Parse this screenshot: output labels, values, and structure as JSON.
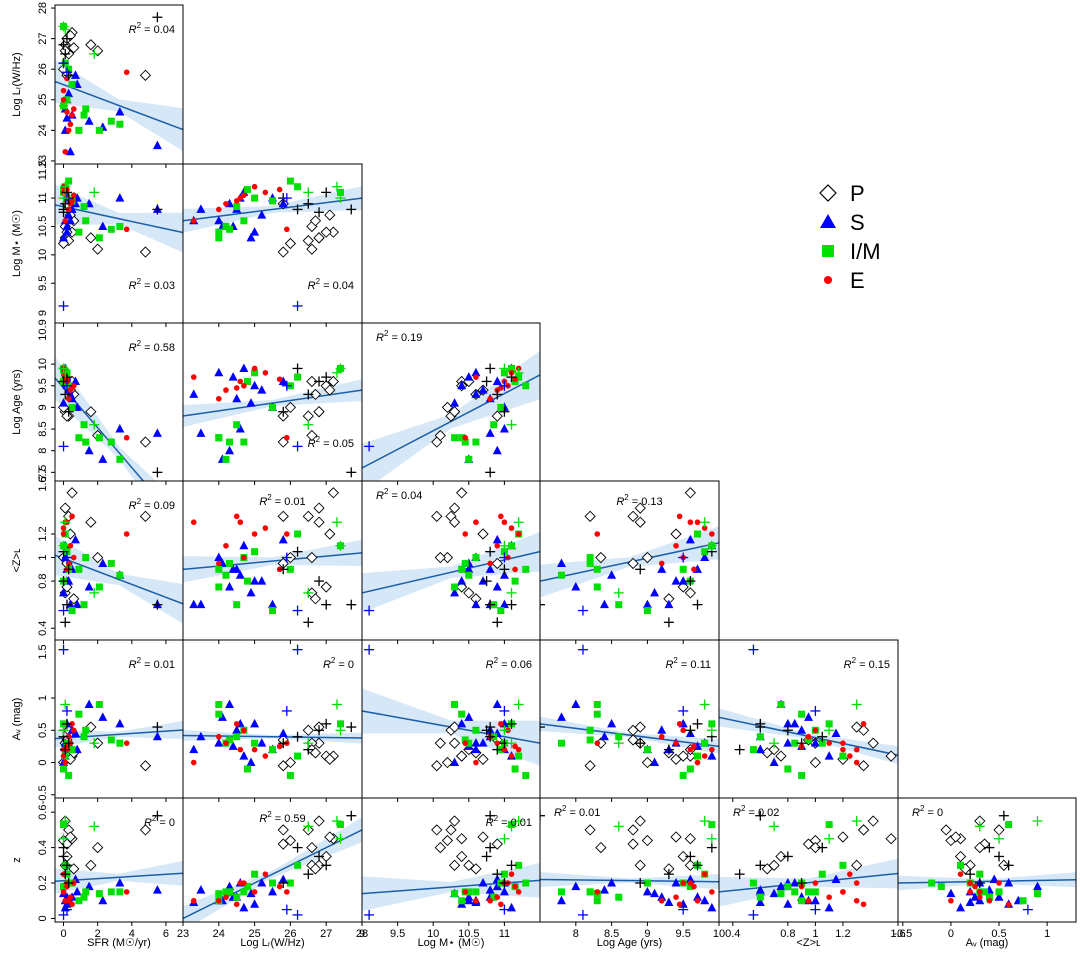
{
  "chart_data": {
    "type": "scatter",
    "variables": [
      {
        "key": "sfr",
        "label": "SFR (M☉/yr)",
        "ticks": [
          0,
          2,
          4,
          6
        ],
        "range": [
          -0.5,
          7.0
        ]
      },
      {
        "key": "lr",
        "label": "Log Lᵣ(W/Hz)",
        "ticks": [
          23,
          24,
          25,
          26,
          27,
          28
        ],
        "range": [
          23,
          28
        ]
      },
      {
        "key": "mstar",
        "label": "Log M⋆ (M☉)",
        "ticks": [
          9,
          9.5,
          10,
          10.5,
          11
        ],
        "range": [
          9,
          11.5
        ]
      },
      {
        "key": "age",
        "label": "Log Age (yrs)",
        "ticks": [
          8,
          8.5,
          9,
          9.5,
          10
        ],
        "range": [
          7.5,
          10
        ]
      },
      {
        "key": "z_l",
        "label": "<Z>ʟ",
        "ticks": [
          0.4,
          0.8,
          1,
          1.2,
          1.6
        ],
        "range": [
          0.3,
          1.6
        ]
      },
      {
        "key": "av",
        "label": "Aᵥ (mag)",
        "ticks": [
          -0.5,
          0,
          0.5,
          1
        ],
        "range": [
          -0.55,
          1.3
        ]
      },
      {
        "key": "z",
        "label": "z",
        "ticks": [
          0,
          0.2,
          0.4,
          0.6
        ],
        "range": [
          -0.02,
          0.68
        ]
      }
    ],
    "y_ticks": {
      "lr": [
        23,
        24,
        25,
        26,
        27,
        28
      ],
      "mstar": [
        9.5,
        10,
        10.5,
        11
      ],
      "age": [
        7.5,
        8,
        8.5,
        9,
        9.5,
        10
      ],
      "z_l": [
        0.4,
        0.8,
        1,
        1.2
      ],
      "av": [
        -0.5,
        0,
        0.5,
        1
      ],
      "z": [
        0,
        0.2,
        0.4,
        0.6
      ]
    },
    "y_tick_labels": {
      "lr": [
        "23",
        "24",
        "25",
        "26",
        "27",
        "28"
      ],
      "mstar": [
        "9.5",
        "10",
        "10.5",
        "11"
      ],
      "age": [
        "7.5",
        "8",
        "8.5",
        "9",
        "9.5",
        "10"
      ],
      "z_l": [
        "0.4",
        "0.8",
        "1",
        "1.2"
      ],
      "av": [
        "-0.5",
        "0",
        "0.5",
        "1"
      ],
      "z": [
        "0",
        "0.2",
        "0.4",
        "0.6"
      ]
    },
    "y_extra_labels": {
      "mstar": [
        "9",
        "11.5"
      ],
      "age": [
        "6.7",
        "10.9"
      ],
      "z_l": [
        "1.6"
      ],
      "av": [
        "1.5"
      ]
    },
    "y_range": {
      "lr": [
        22.9,
        28.1
      ],
      "mstar": [
        8.8,
        11.6
      ],
      "age": [
        7.3,
        10.95
      ],
      "z_l": [
        0.3,
        1.65
      ],
      "av": [
        -0.55,
        1.9
      ],
      "z": [
        -0.02,
        0.68
      ]
    },
    "panels": [
      {
        "x": "sfr",
        "y": "lr",
        "r2": "0.04",
        "r2_pos": "top-right",
        "fit": [
          25.6,
          -0.21
        ],
        "band": 0.5
      },
      {
        "x": "sfr",
        "y": "mstar",
        "r2": "0.03",
        "r2_pos": "bottom-right",
        "fit": [
          10.88,
          -0.065
        ],
        "band": 0.25
      },
      {
        "x": "lr",
        "y": "mstar",
        "r2": "0.04",
        "r2_pos": "bottom-right",
        "fit": [
          10.6,
          0.08
        ],
        "band": 0.15
      },
      {
        "x": "sfr",
        "y": "age",
        "r2": "0.58",
        "r2_pos": "top-right",
        "fit": [
          9.68,
          -0.46
        ],
        "band": 0.35
      },
      {
        "x": "lr",
        "y": "age",
        "r2": "0.05",
        "r2_pos": "bottom-right",
        "fit": [
          8.8,
          0.12
        ],
        "band": 0.18
      },
      {
        "x": "mstar",
        "y": "age",
        "r2": "0.19",
        "r2_pos": "top-left",
        "fit": [
          7.6,
          0.86
        ],
        "band": 0.4
      },
      {
        "x": "sfr",
        "y": "z_l",
        "r2": "0.09",
        "r2_pos": "top-right",
        "fit": [
          1.02,
          -0.055
        ],
        "band": 0.12
      },
      {
        "x": "lr",
        "y": "z_l",
        "r2": "0.01",
        "r2_pos": "top-center",
        "fit": [
          0.9,
          0.028
        ],
        "band": 0.08
      },
      {
        "x": "mstar",
        "y": "z_l",
        "r2": "0.04",
        "r2_pos": "top-left",
        "fit": [
          0.7,
          0.14
        ],
        "band": 0.12
      },
      {
        "x": "age",
        "y": "z_l",
        "r2": "0.13",
        "r2_pos": "top-center",
        "fit": [
          0.8,
          0.13
        ],
        "band": 0.1
      },
      {
        "x": "sfr",
        "y": "av",
        "r2": "0.01",
        "r2_pos": "top-right",
        "fit": [
          0.37,
          0.018
        ],
        "band": 0.1
      },
      {
        "x": "lr",
        "y": "av",
        "r2": "0",
        "r2_pos": "top-right",
        "fit": [
          0.42,
          -0.008
        ],
        "band": 0.06
      },
      {
        "x": "mstar",
        "y": "av",
        "r2": "0.06",
        "r2_pos": "top-right",
        "fit": [
          0.8,
          -0.2
        ],
        "band": 0.25
      },
      {
        "x": "age",
        "y": "av",
        "r2": "0.11",
        "r2_pos": "top-right",
        "fit": [
          0.6,
          -0.14
        ],
        "band": 0.08
      },
      {
        "x": "z_l",
        "y": "av",
        "r2": "0.15",
        "r2_pos": "top-right",
        "fit": [
          0.7,
          -0.45
        ],
        "band": 0.1
      },
      {
        "x": "sfr",
        "y": "z",
        "r2": "0",
        "r2_pos": "top-right",
        "fit": [
          0.21,
          0.006
        ],
        "band": 0.05
      },
      {
        "x": "lr",
        "y": "z",
        "r2": "0.59",
        "r2_pos": "top-center",
        "fit": [
          0.0,
          0.1
        ],
        "band": 0.05
      },
      {
        "x": "mstar",
        "y": "z",
        "r2": "0.01",
        "r2_pos": "top-right",
        "fit": [
          0.14,
          0.03
        ],
        "band": 0.07
      },
      {
        "x": "age",
        "y": "z",
        "r2": "0.01",
        "r2_pos": "top-left",
        "fit": [
          0.22,
          -0.005
        ],
        "band": 0.03
      },
      {
        "x": "z_l",
        "y": "z",
        "r2": "0.02",
        "r2_pos": "top-left",
        "fit": [
          0.15,
          0.08
        ],
        "band": 0.06
      },
      {
        "x": "av",
        "y": "z",
        "r2": "0",
        "r2_pos": "top-left",
        "fit": [
          0.2,
          0.01
        ],
        "band": 0.03
      }
    ],
    "points": [
      {
        "g": "P",
        "sfr": 0.1,
        "lr": 26.8,
        "mstar": 10.3,
        "age": 8.9,
        "z_l": 1.42,
        "av": 0.3,
        "z": 0.55
      },
      {
        "g": "P",
        "sfr": 0.3,
        "lr": 26.5,
        "mstar": 10.25,
        "age": 8.8,
        "z_l": 1.35,
        "av": 0.5,
        "z": 0.5
      },
      {
        "g": "P",
        "sfr": 0.5,
        "lr": 27.2,
        "mstar": 10.4,
        "age": 9.6,
        "z_l": 1.55,
        "av": 0.1,
        "z": 0.45
      },
      {
        "g": "P",
        "sfr": 1.6,
        "lr": 26.8,
        "mstar": 10.3,
        "age": 8.9,
        "z_l": 1.3,
        "av": 0.55,
        "z": 0.3
      },
      {
        "g": "P",
        "sfr": 0.0,
        "lr": 26.0,
        "mstar": 10.2,
        "age": 9.0,
        "z_l": 1.0,
        "av": 0.0,
        "z": 0.44
      },
      {
        "g": "P",
        "sfr": 0.2,
        "lr": 25.8,
        "mstar": 10.9,
        "age": 8.8,
        "z_l": 0.95,
        "av": 0.35,
        "z": 0.42
      },
      {
        "g": "P",
        "sfr": 2.0,
        "lr": 26.6,
        "mstar": 10.1,
        "age": 8.35,
        "z_l": 1.0,
        "av": 0.3,
        "z": 0.4
      },
      {
        "g": "P",
        "sfr": 4.8,
        "lr": 25.8,
        "mstar": 10.05,
        "age": 8.2,
        "z_l": 1.35,
        "av": -0.05,
        "z": 0.5
      },
      {
        "g": "P",
        "sfr": 0.1,
        "lr": 26.6,
        "mstar": 10.5,
        "age": 9.6,
        "z_l": 0.7,
        "av": 0.2,
        "z": 0.3
      },
      {
        "g": "P",
        "sfr": 0.2,
        "lr": 27.0,
        "mstar": 10.4,
        "age": 9.5,
        "z_l": 0.75,
        "av": 0.1,
        "z": 0.35
      },
      {
        "g": "P",
        "sfr": 0.6,
        "lr": 26.7,
        "mstar": 10.6,
        "age": 9.3,
        "z_l": 0.65,
        "av": 0.15,
        "z": 0.28
      },
      {
        "g": "P",
        "sfr": 0.4,
        "lr": 27.1,
        "mstar": 10.7,
        "age": 9.4,
        "z_l": 1.2,
        "av": 0.05,
        "z": 0.46
      },
      {
        "g": "S",
        "sfr": 0.1,
        "lr": 24.0,
        "mstar": 10.6,
        "age": 9.8,
        "z_l": 1.0,
        "av": 0.3,
        "z": 0.1
      },
      {
        "g": "S",
        "sfr": 0.5,
        "lr": 24.5,
        "mstar": 10.8,
        "age": 9.2,
        "z_l": 0.9,
        "av": 0.5,
        "z": 0.12
      },
      {
        "g": "S",
        "sfr": 0.8,
        "lr": 25.5,
        "mstar": 11.0,
        "age": 9.0,
        "z_l": 0.6,
        "av": 0.2,
        "z": 0.15
      },
      {
        "g": "S",
        "sfr": 0.2,
        "lr": 25.0,
        "mstar": 10.4,
        "age": 9.5,
        "z_l": 0.8,
        "av": 0.6,
        "z": 0.08
      },
      {
        "g": "S",
        "sfr": 1.5,
        "lr": 24.3,
        "mstar": 10.9,
        "age": 8.0,
        "z_l": 0.75,
        "av": 0.9,
        "z": 0.18
      },
      {
        "g": "S",
        "sfr": 2.3,
        "lr": 24.1,
        "mstar": 10.5,
        "age": 7.8,
        "z_l": 0.95,
        "av": 0.7,
        "z": 0.1
      },
      {
        "g": "S",
        "sfr": 5.5,
        "lr": 23.5,
        "mstar": 10.8,
        "age": 8.4,
        "z_l": 0.6,
        "av": 0.4,
        "z": 0.16
      },
      {
        "g": "S",
        "sfr": 0.1,
        "lr": 24.7,
        "mstar": 11.1,
        "age": 9.9,
        "z_l": 1.1,
        "av": 0.1,
        "z": 0.06
      },
      {
        "g": "S",
        "sfr": 0.3,
        "lr": 25.2,
        "mstar": 10.7,
        "age": 9.4,
        "z_l": 0.8,
        "av": 0.3,
        "z": 0.2
      },
      {
        "g": "S",
        "sfr": 0.0,
        "lr": 24.9,
        "mstar": 10.3,
        "age": 9.1,
        "z_l": 0.7,
        "av": 0.0,
        "z": 0.14
      },
      {
        "g": "S",
        "sfr": 0.7,
        "lr": 25.8,
        "mstar": 10.9,
        "age": 9.6,
        "z_l": 1.15,
        "av": 0.45,
        "z": 0.22
      },
      {
        "g": "S",
        "sfr": 0.2,
        "lr": 24.4,
        "mstar": 10.5,
        "age": 9.7,
        "z_l": 0.9,
        "av": 0.25,
        "z": 0.12
      },
      {
        "g": "S",
        "sfr": 3.3,
        "lr": 24.6,
        "mstar": 11.0,
        "age": 8.5,
        "z_l": 0.85,
        "av": 0.6,
        "z": 0.2
      },
      {
        "g": "S",
        "sfr": 0.4,
        "lr": 23.3,
        "mstar": 10.6,
        "age": 9.3,
        "z_l": 0.6,
        "av": 0.2,
        "z": 0.09
      },
      {
        "g": "I",
        "sfr": 0.0,
        "lr": 27.4,
        "mstar": 11.1,
        "age": 9.9,
        "z_l": 1.1,
        "av": 0.6,
        "z": 0.53
      },
      {
        "g": "I",
        "sfr": 0.3,
        "lr": 26.0,
        "mstar": 11.3,
        "age": 9.5,
        "z_l": 0.9,
        "av": -0.2,
        "z": 0.2
      },
      {
        "g": "I",
        "sfr": 1.3,
        "lr": 24.7,
        "mstar": 10.6,
        "age": 8.2,
        "z_l": 1.0,
        "av": 0.5,
        "z": 0.15
      },
      {
        "g": "I",
        "sfr": 2.1,
        "lr": 24.0,
        "mstar": 10.3,
        "age": 8.3,
        "z_l": 0.75,
        "av": 0.9,
        "z": 0.14
      },
      {
        "g": "I",
        "sfr": 3.3,
        "lr": 24.2,
        "mstar": 10.5,
        "age": 7.8,
        "z_l": 0.85,
        "av": 0.3,
        "z": 0.15
      },
      {
        "g": "I",
        "sfr": 0.5,
        "lr": 25.5,
        "mstar": 10.95,
        "age": 9.0,
        "z_l": 0.55,
        "av": 0.2,
        "z": 0.2
      },
      {
        "g": "I",
        "sfr": 0.1,
        "lr": 26.2,
        "mstar": 11.2,
        "age": 9.7,
        "z_l": 1.2,
        "av": 0.1,
        "z": 0.3
      },
      {
        "g": "I",
        "sfr": 1.2,
        "lr": 24.5,
        "mstar": 10.85,
        "age": 8.6,
        "z_l": 0.6,
        "av": 0.4,
        "z": 0.12
      },
      {
        "g": "I",
        "sfr": 0.9,
        "lr": 24.0,
        "mstar": 10.4,
        "age": 8.3,
        "z_l": 0.9,
        "av": 0.75,
        "z": 0.1
      },
      {
        "g": "I",
        "sfr": 0.2,
        "lr": 25.0,
        "mstar": 11.0,
        "age": 9.8,
        "z_l": 1.05,
        "av": 0.3,
        "z": 0.25
      },
      {
        "g": "I",
        "sfr": 2.8,
        "lr": 24.3,
        "mstar": 10.45,
        "age": 8.2,
        "z_l": 0.95,
        "av": 0.35,
        "z": 0.15
      },
      {
        "g": "I",
        "sfr": 0.0,
        "lr": 24.8,
        "mstar": 11.15,
        "age": 9.6,
        "z_l": 0.8,
        "av": -0.1,
        "z": 0.18
      },
      {
        "g": "E",
        "sfr": 0.2,
        "lr": 24.6,
        "mstar": 11.0,
        "age": 9.6,
        "z_l": 1.3,
        "av": 0.2,
        "z": 0.2
      },
      {
        "g": "E",
        "sfr": 0.0,
        "lr": 25.3,
        "mstar": 11.1,
        "age": 9.8,
        "z_l": 1.25,
        "av": 0.1,
        "z": 0.25
      },
      {
        "g": "E",
        "sfr": 0.4,
        "lr": 24.2,
        "mstar": 10.9,
        "age": 9.4,
        "z_l": 1.1,
        "av": 0.3,
        "z": 0.12
      },
      {
        "g": "E",
        "sfr": 3.7,
        "lr": 25.9,
        "mstar": 10.45,
        "age": 8.3,
        "z_l": 1.2,
        "av": 0.3,
        "z": 0.15
      },
      {
        "g": "E",
        "sfr": 0.1,
        "lr": 23.3,
        "mstar": 10.6,
        "age": 9.7,
        "z_l": 1.3,
        "av": 0.0,
        "z": 0.1
      },
      {
        "g": "E",
        "sfr": 0.6,
        "lr": 24.7,
        "mstar": 11.05,
        "age": 9.5,
        "z_l": 1.0,
        "av": 0.5,
        "z": 0.2
      },
      {
        "g": "E",
        "sfr": 0.3,
        "lr": 24.0,
        "mstar": 10.8,
        "age": 9.2,
        "z_l": 0.95,
        "av": 0.4,
        "z": 0.1
      },
      {
        "g": "E",
        "sfr": 0.0,
        "lr": 25.0,
        "mstar": 11.2,
        "age": 9.9,
        "z_l": 1.2,
        "av": 0.2,
        "z": 0.15
      },
      {
        "g": "E",
        "sfr": 0.5,
        "lr": 24.5,
        "mstar": 10.95,
        "age": 9.45,
        "z_l": 1.35,
        "av": 0.6,
        "z": 0.08
      },
      {
        "g": "E",
        "sfr": 0.2,
        "lr": 25.7,
        "mstar": 11.15,
        "age": 9.65,
        "z_l": 0.9,
        "av": 0.25,
        "z": 0.18
      },
      {
        "g": "B",
        "sfr": 0.0,
        "lr": 26.2,
        "mstar": 10.8,
        "age": 9.9,
        "z_l": 1.05,
        "av": 0.4,
        "z": 0.4
      },
      {
        "g": "B",
        "sfr": 0.2,
        "lr": 27.0,
        "mstar": 11.1,
        "age": 9.7,
        "z_l": 0.6,
        "av": 0.6,
        "z": 0.3
      },
      {
        "g": "B",
        "sfr": 5.5,
        "lr": 27.7,
        "mstar": 10.8,
        "age": 7.5,
        "z_l": 0.6,
        "av": 0.55,
        "z": 0.58
      },
      {
        "g": "B",
        "sfr": 0.1,
        "lr": 26.5,
        "mstar": 10.9,
        "age": 9.3,
        "z_l": 0.45,
        "av": 0.2,
        "z": 0.25
      },
      {
        "g": "B",
        "sfr": 0.3,
        "lr": 25.8,
        "mstar": 11.0,
        "age": 8.9,
        "z_l": 0.9,
        "av": 0.3,
        "z": 0.2
      },
      {
        "g": "B",
        "sfr": 0.0,
        "lr": 26.8,
        "mstar": 10.75,
        "age": 9.6,
        "z_l": 0.8,
        "av": 0.5,
        "z": 0.35
      },
      {
        "g": "C",
        "sfr": 0.0,
        "lr": 26.2,
        "mstar": 9.1,
        "age": 8.1,
        "z_l": 0.55,
        "av": 1.75,
        "z": 0.02
      },
      {
        "g": "C",
        "sfr": 0.2,
        "lr": 25.9,
        "mstar": 11.0,
        "age": 9.5,
        "z_l": 1.0,
        "av": 0.8,
        "z": 0.05
      },
      {
        "g": "G",
        "sfr": 0.1,
        "lr": 27.3,
        "mstar": 11.2,
        "age": 9.8,
        "z_l": 1.3,
        "av": 0.9,
        "z": 0.55
      },
      {
        "g": "G",
        "sfr": 1.8,
        "lr": 26.5,
        "mstar": 11.1,
        "age": 8.6,
        "z_l": 0.7,
        "av": 0.3,
        "z": 0.52
      },
      {
        "g": "G",
        "sfr": 0.0,
        "lr": 27.4,
        "mstar": 11.0,
        "age": 9.9,
        "z_l": 1.1,
        "av": 0.5,
        "z": 0.45
      }
    ],
    "legend": [
      {
        "key": "P",
        "label": "P",
        "marker": "diamond-open",
        "color": "#000000"
      },
      {
        "key": "S",
        "label": "S",
        "marker": "triangle",
        "color": "#0000ff"
      },
      {
        "key": "I",
        "label": "I/M",
        "marker": "square",
        "color": "#00e000"
      },
      {
        "key": "E",
        "label": "E",
        "marker": "circle",
        "color": "#ff0000"
      }
    ],
    "plus_groups": {
      "B": "#000000",
      "C": "#0000ff",
      "G": "#00e000"
    },
    "fit_color": "#1a5ea8",
    "band_color": "#cfe3f7",
    "legend_position": "right"
  }
}
